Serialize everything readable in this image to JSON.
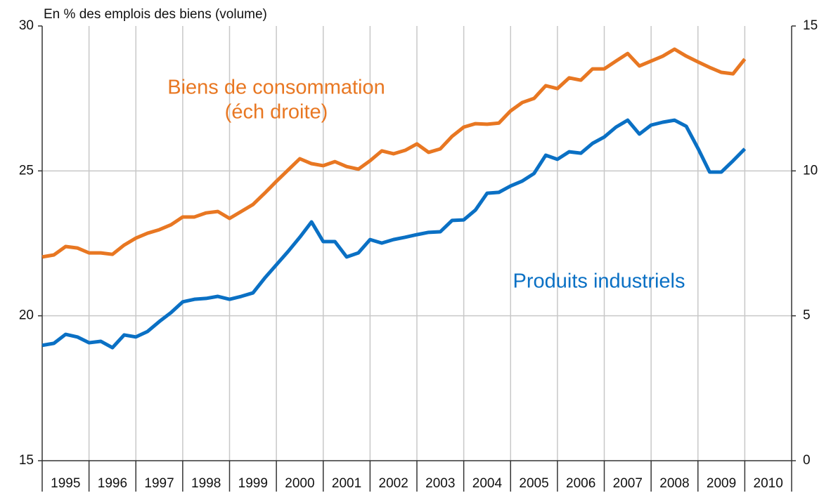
{
  "chart_data": {
    "type": "line",
    "ylabel": "En % des emplois des biens (volume)",
    "categories": [
      "1995",
      null,
      null,
      null,
      "1996",
      null,
      null,
      null,
      "1997",
      null,
      null,
      null,
      "1998",
      null,
      null,
      null,
      "1999",
      null,
      null,
      null,
      "2000",
      null,
      null,
      null,
      "2001",
      null,
      null,
      null,
      "2002",
      null,
      null,
      null,
      "2003",
      null,
      null,
      null,
      "2004",
      null,
      null,
      null,
      "2005",
      null,
      null,
      null,
      "2006",
      null,
      null,
      null,
      "2007",
      null,
      null,
      null,
      "2008",
      null,
      null,
      null,
      "2009",
      null,
      null,
      null,
      "2010",
      null,
      null,
      null
    ],
    "series": [
      {
        "name": "Biens de consommation (éch droite)",
        "color": "#e87722",
        "axis": "y2",
        "values": [
          7.03,
          7.1,
          7.39,
          7.34,
          7.17,
          7.17,
          7.12,
          7.44,
          7.68,
          7.85,
          7.97,
          8.14,
          8.41,
          8.41,
          8.55,
          8.6,
          8.36,
          8.6,
          8.84,
          9.23,
          9.64,
          10.03,
          10.42,
          10.25,
          10.18,
          10.32,
          10.15,
          10.06,
          10.35,
          10.69,
          10.59,
          10.71,
          10.93,
          10.64,
          10.76,
          11.19,
          11.51,
          11.63,
          11.61,
          11.65,
          12.07,
          12.36,
          12.5,
          12.94,
          12.84,
          13.21,
          13.13,
          13.52,
          13.52,
          13.79,
          14.05,
          13.62,
          13.79,
          13.96,
          14.2,
          13.96,
          13.76,
          13.57,
          13.4,
          13.35,
          13.86,
          null,
          null,
          null
        ]
      },
      {
        "name": "Produits industriels",
        "color": "#0a70c4",
        "values": [
          18.98,
          19.05,
          19.36,
          19.27,
          19.07,
          19.12,
          18.9,
          19.34,
          19.27,
          19.46,
          19.8,
          20.11,
          20.48,
          20.57,
          20.6,
          20.67,
          20.57,
          20.67,
          20.79,
          21.3,
          21.76,
          22.22,
          22.71,
          23.24,
          22.56,
          22.56,
          22.03,
          22.17,
          22.63,
          22.51,
          22.63,
          22.71,
          22.8,
          22.88,
          22.9,
          23.29,
          23.31,
          23.65,
          24.23,
          24.26,
          24.48,
          24.65,
          24.91,
          25.54,
          25.4,
          25.66,
          25.61,
          25.95,
          26.17,
          26.51,
          26.75,
          26.27,
          26.58,
          26.68,
          26.75,
          26.54,
          25.78,
          24.96,
          24.96,
          25.35,
          25.76,
          null,
          null,
          null
        ]
      }
    ],
    "annotations": [
      "Biens de consommation",
      "(éch droite)",
      "Produits industriels"
    ],
    "ylim": [
      15,
      30
    ],
    "yticks": [
      15,
      20,
      25,
      30
    ],
    "y2lim": [
      0,
      15
    ],
    "y2ticks": [
      0,
      5,
      10,
      15
    ],
    "grid": true
  }
}
